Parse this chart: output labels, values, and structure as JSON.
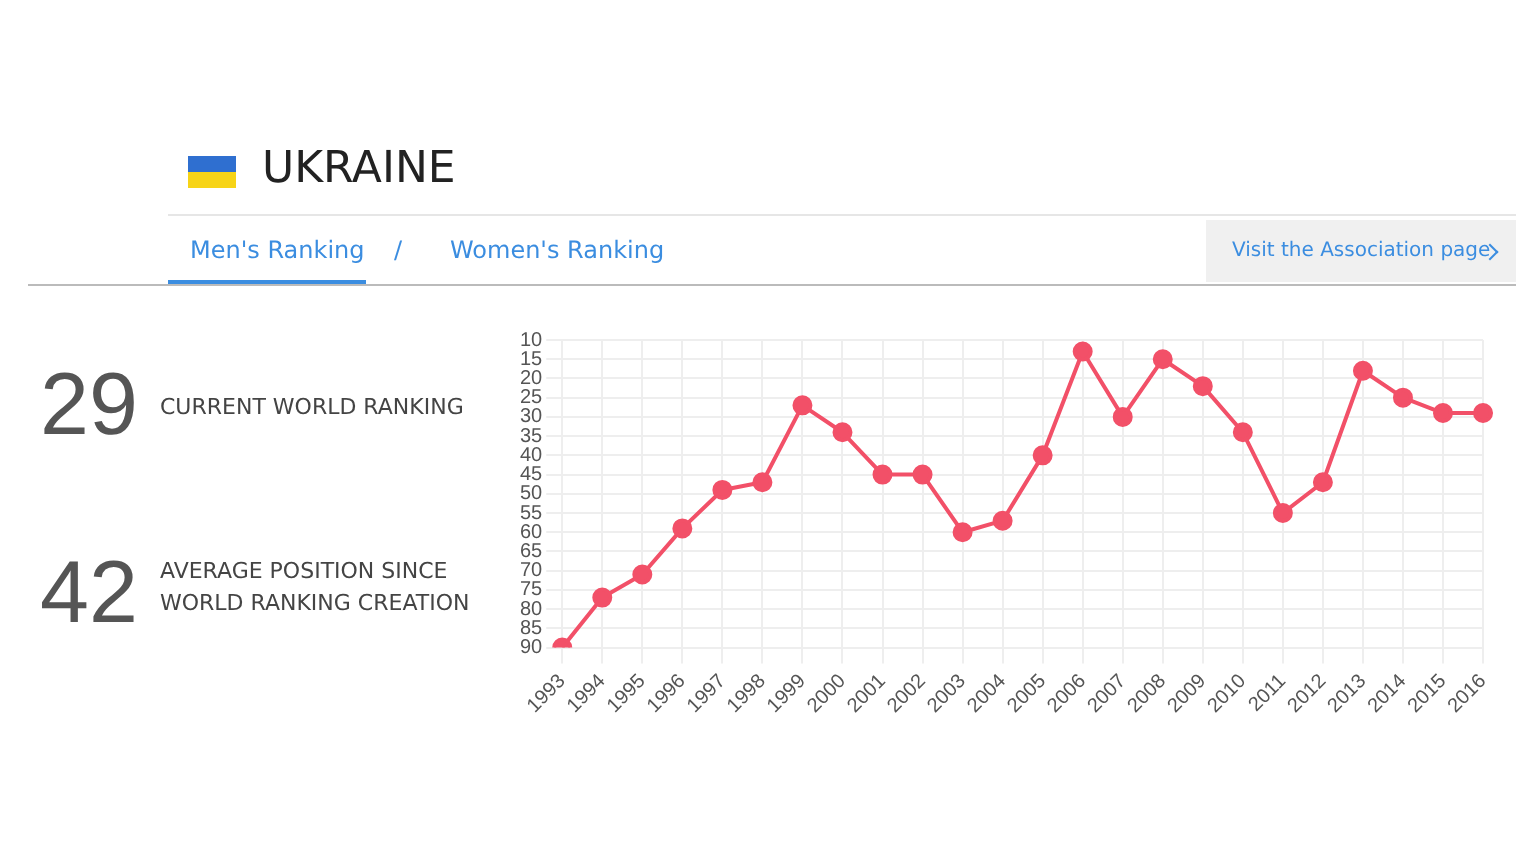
{
  "chart_data": {
    "type": "line",
    "title": "UKRAINE",
    "annotations": [
      "Men's Ranking",
      "/",
      "Women's Ranking",
      "Visit the Association page",
      "29",
      "CURRENT WORLD RANKING",
      "42",
      "AVERAGE POSITION SINCE WORLD RANKING CREATION"
    ],
    "categories": [
      "1993",
      "1994",
      "1995",
      "1996",
      "1997",
      "1998",
      "1999",
      "2000",
      "2001",
      "2002",
      "2003",
      "2004",
      "2005",
      "2006",
      "2007",
      "2008",
      "2009",
      "2010",
      "2011",
      "2012",
      "2013",
      "2014",
      "2015",
      "2016"
    ],
    "series": [
      {
        "color": "#f25068",
        "values": [
          90,
          77,
          71,
          59,
          49,
          47,
          27,
          34,
          45,
          45,
          60,
          57,
          40,
          13,
          30,
          15,
          22,
          34,
          55,
          47,
          18,
          25,
          29,
          29
        ]
      }
    ],
    "ylim": [
      90,
      10
    ],
    "yticks": [
      10,
      15,
      20,
      25,
      30,
      35,
      40,
      45,
      50,
      55,
      60,
      65,
      70,
      75,
      80,
      85,
      90
    ],
    "grid": true,
    "legend": false,
    "marker": "circle",
    "line_style": "solid"
  }
}
